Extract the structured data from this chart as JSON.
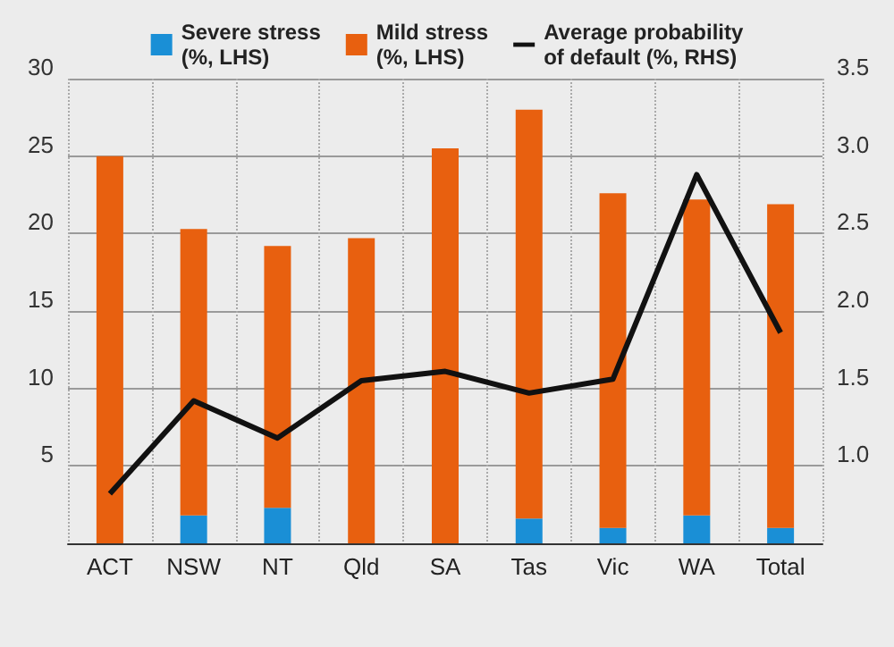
{
  "chart_data": {
    "type": "bar",
    "stacked": true,
    "categories": [
      "ACT",
      "NSW",
      "NT",
      "Qld",
      "SA",
      "Tas",
      "Vic",
      "WA",
      "Total"
    ],
    "series": [
      {
        "name": "Severe stress\n(%, LHS)",
        "color": "#1a8fd6",
        "values": [
          0,
          1.8,
          2.3,
          0,
          0,
          1.6,
          1.0,
          1.8,
          1.0
        ]
      },
      {
        "name": "Mild stress\n(%, LHS)",
        "color": "#e8600f",
        "values": [
          25.0,
          18.5,
          16.9,
          19.7,
          25.5,
          26.4,
          21.6,
          20.4,
          20.9
        ]
      },
      {
        "name": "Average probability\nof default (%, RHS)",
        "type": "line",
        "axis": "y2",
        "color": "#111111",
        "values": [
          0.82,
          1.42,
          1.18,
          1.55,
          1.61,
          1.47,
          1.56,
          2.88,
          1.86
        ]
      }
    ],
    "ylim": [
      0,
      30
    ],
    "yticks": [
      {
        "value": 0,
        "label": null
      },
      5,
      10,
      15,
      20,
      25,
      30
    ],
    "y2lim": [
      0.5,
      3.5
    ],
    "y2ticks": [
      {
        "value": 0.5,
        "label": null
      },
      {
        "value": 1,
        "label": "1.0"
      },
      {
        "value": 1.5,
        "label": "1.5"
      },
      {
        "value": 2,
        "label": "2.0"
      },
      {
        "value": 2.5,
        "label": "2.5"
      },
      {
        "value": 3,
        "label": "3.0"
      },
      {
        "value": 3.5,
        "label": "3.5"
      }
    ],
    "grid": true,
    "legend": "top",
    "marker": "none"
  }
}
